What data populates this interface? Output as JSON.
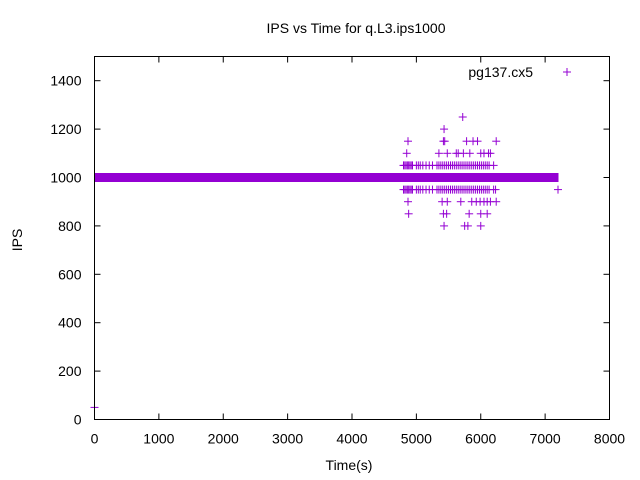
{
  "chart_data": {
    "type": "scatter",
    "title": "IPS vs Time for q.L3.ips1000",
    "xlabel": "Time(s)",
    "ylabel": "IPS",
    "xlim": [
      0,
      8000
    ],
    "ylim": [
      0,
      1500
    ],
    "xticks": [
      0,
      1000,
      2000,
      3000,
      4000,
      5000,
      6000,
      7000,
      8000
    ],
    "yticks": [
      0,
      200,
      400,
      600,
      800,
      1000,
      1200,
      1400
    ],
    "grid": false,
    "legend_position": "top-right",
    "marker": "+",
    "series": [
      {
        "name": "pg137.cx5",
        "color": "#9400d3",
        "baseline": {
          "x_start": 0,
          "x_end": 7200,
          "y": 1000
        },
        "points": [
          [
            0,
            50
          ],
          [
            7200,
            950
          ],
          [
            4800,
            1050
          ],
          [
            4820,
            1050
          ],
          [
            4840,
            1050
          ],
          [
            4860,
            1050
          ],
          [
            4880,
            1050
          ],
          [
            4900,
            1050
          ],
          [
            4920,
            1050
          ],
          [
            4940,
            1050
          ],
          [
            5000,
            1050
          ],
          [
            5030,
            1050
          ],
          [
            5060,
            1050
          ],
          [
            5100,
            1050
          ],
          [
            5150,
            1050
          ],
          [
            5200,
            1050
          ],
          [
            5250,
            1050
          ],
          [
            5320,
            1050
          ],
          [
            5350,
            1050
          ],
          [
            5380,
            1050
          ],
          [
            5410,
            1050
          ],
          [
            5440,
            1050
          ],
          [
            5470,
            1050
          ],
          [
            5500,
            1050
          ],
          [
            5530,
            1050
          ],
          [
            5560,
            1050
          ],
          [
            5590,
            1050
          ],
          [
            5620,
            1050
          ],
          [
            5650,
            1050
          ],
          [
            5680,
            1050
          ],
          [
            5710,
            1050
          ],
          [
            5740,
            1050
          ],
          [
            5770,
            1050
          ],
          [
            5800,
            1050
          ],
          [
            5830,
            1050
          ],
          [
            5860,
            1050
          ],
          [
            5890,
            1050
          ],
          [
            5920,
            1050
          ],
          [
            5950,
            1050
          ],
          [
            5980,
            1050
          ],
          [
            6010,
            1050
          ],
          [
            6040,
            1050
          ],
          [
            6070,
            1050
          ],
          [
            6100,
            1050
          ],
          [
            6130,
            1050
          ],
          [
            6200,
            1050
          ],
          [
            4800,
            950
          ],
          [
            4820,
            950
          ],
          [
            4840,
            950
          ],
          [
            4860,
            950
          ],
          [
            4880,
            950
          ],
          [
            4900,
            950
          ],
          [
            4920,
            950
          ],
          [
            4940,
            950
          ],
          [
            5000,
            950
          ],
          [
            5030,
            950
          ],
          [
            5060,
            950
          ],
          [
            5100,
            950
          ],
          [
            5150,
            950
          ],
          [
            5200,
            950
          ],
          [
            5250,
            950
          ],
          [
            5320,
            950
          ],
          [
            5350,
            950
          ],
          [
            5380,
            950
          ],
          [
            5410,
            950
          ],
          [
            5440,
            950
          ],
          [
            5470,
            950
          ],
          [
            5500,
            950
          ],
          [
            5530,
            950
          ],
          [
            5560,
            950
          ],
          [
            5590,
            950
          ],
          [
            5620,
            950
          ],
          [
            5650,
            950
          ],
          [
            5680,
            950
          ],
          [
            5710,
            950
          ],
          [
            5740,
            950
          ],
          [
            5770,
            950
          ],
          [
            5800,
            950
          ],
          [
            5830,
            950
          ],
          [
            5860,
            950
          ],
          [
            5890,
            950
          ],
          [
            5920,
            950
          ],
          [
            5950,
            950
          ],
          [
            5980,
            950
          ],
          [
            6010,
            950
          ],
          [
            6040,
            950
          ],
          [
            6070,
            950
          ],
          [
            6100,
            950
          ],
          [
            6130,
            950
          ],
          [
            6200,
            950
          ],
          [
            6230,
            950
          ],
          [
            4850,
            1100
          ],
          [
            4870,
            1150
          ],
          [
            5350,
            1100
          ],
          [
            5420,
            1150
          ],
          [
            5440,
            1150
          ],
          [
            5480,
            1100
          ],
          [
            5620,
            1100
          ],
          [
            5650,
            1100
          ],
          [
            5730,
            1100
          ],
          [
            5780,
            1150
          ],
          [
            5830,
            1100
          ],
          [
            5880,
            1150
          ],
          [
            5950,
            1150
          ],
          [
            6000,
            1100
          ],
          [
            6050,
            1100
          ],
          [
            6120,
            1100
          ],
          [
            6150,
            1100
          ],
          [
            6240,
            1150
          ],
          [
            5430,
            1200
          ],
          [
            5720,
            1250
          ],
          [
            4870,
            900
          ],
          [
            5400,
            900
          ],
          [
            5480,
            900
          ],
          [
            5690,
            900
          ],
          [
            5860,
            900
          ],
          [
            5930,
            900
          ],
          [
            5990,
            900
          ],
          [
            6050,
            900
          ],
          [
            6100,
            900
          ],
          [
            6150,
            900
          ],
          [
            6240,
            900
          ],
          [
            4880,
            850
          ],
          [
            5420,
            850
          ],
          [
            5470,
            850
          ],
          [
            5820,
            850
          ],
          [
            6000,
            850
          ],
          [
            6100,
            850
          ],
          [
            5430,
            800
          ],
          [
            5750,
            800
          ],
          [
            5800,
            800
          ],
          [
            6000,
            800
          ]
        ]
      }
    ]
  }
}
